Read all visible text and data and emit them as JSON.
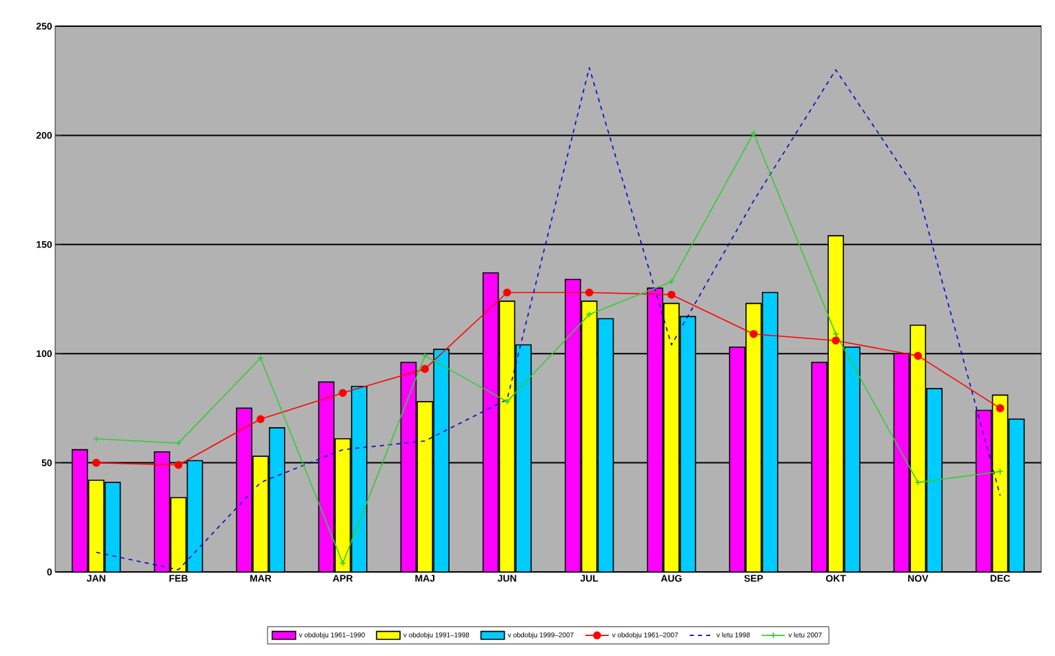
{
  "chart_data": {
    "type": "bar",
    "categories": [
      "JAN",
      "FEB",
      "MAR",
      "APR",
      "MAJ",
      "JUN",
      "JUL",
      "AUG",
      "SEP",
      "OKT",
      "NOV",
      "DEC"
    ],
    "series": [
      {
        "name": "v obdobju 1961–1990",
        "color": "#ff00ff",
        "values": [
          56,
          55,
          75,
          87,
          96,
          137,
          134,
          130,
          103,
          96,
          100,
          74
        ]
      },
      {
        "name": "v obdobju 1991–1998",
        "color": "#ffff00",
        "values": [
          42,
          34,
          53,
          61,
          78,
          124,
          124,
          123,
          123,
          154,
          113,
          81
        ]
      },
      {
        "name": "v obdobju 1999–2007",
        "color": "#00ccff",
        "values": [
          41,
          51,
          66,
          85,
          102,
          104,
          116,
          117,
          128,
          103,
          84,
          70
        ]
      },
      {
        "name": "v obdobju 1961–2007",
        "type": "line",
        "marker": "circle",
        "color": "#ff0000",
        "values": [
          50,
          49,
          70,
          82,
          93,
          128,
          128,
          127,
          109,
          106,
          99,
          75
        ]
      },
      {
        "name": "v letu 1998",
        "type": "line",
        "marker": "none",
        "line_style": "dashed",
        "color": "#0000cc",
        "values": [
          9,
          1,
          41,
          56,
          60,
          79,
          231,
          104,
          170,
          230,
          174,
          35
        ]
      },
      {
        "name": "v letu 2007",
        "type": "line",
        "marker": "cross",
        "color": "#33cc33",
        "values": [
          61,
          59,
          98,
          4,
          99,
          78,
          118,
          133,
          201,
          109,
          41,
          46
        ]
      }
    ],
    "ylim": [
      0,
      250
    ],
    "yticks": [
      0,
      50,
      100,
      150,
      200,
      250
    ],
    "grid": "y",
    "legend": "bottom"
  }
}
